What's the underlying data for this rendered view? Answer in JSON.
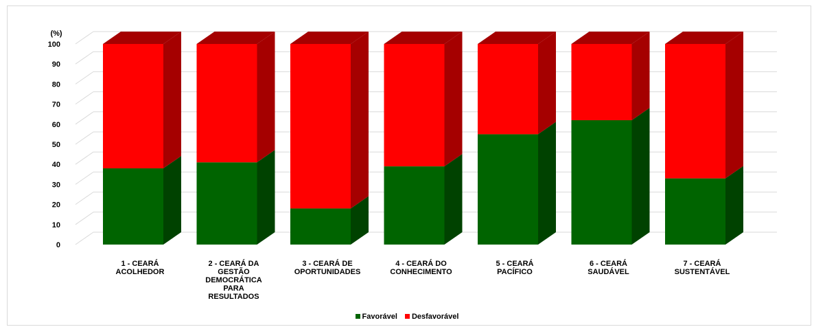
{
  "chart_data": {
    "type": "bar",
    "stacked": true,
    "three_d": true,
    "unit_label": "(%)",
    "categories": [
      [
        "1 - CEARÁ",
        "ACOLHEDOR"
      ],
      [
        "2 - CEARÁ DA",
        "GESTÃO",
        "DEMOCRÁTICA",
        "PARA",
        "RESULTADOS"
      ],
      [
        "3 - CEARÁ DE",
        "OPORTUNIDADES"
      ],
      [
        "4 - CEARÁ DO",
        "CONHECIMENTO"
      ],
      [
        "5 - CEARÁ",
        "PACÍFICO"
      ],
      [
        "6 - CEARÁ",
        "SAUDÁVEL"
      ],
      [
        "7 - CEARÁ",
        "SUSTENTÁVEL"
      ]
    ],
    "series": [
      {
        "name": "Favorável",
        "values": [
          38,
          41,
          18,
          39,
          55,
          62,
          33
        ],
        "color": "#006400",
        "side_color": "#004200"
      },
      {
        "name": "Desfavorável",
        "values": [
          62,
          59,
          82,
          61,
          45,
          38,
          67
        ],
        "color": "#ff0000",
        "side_color": "#a50000"
      }
    ],
    "ylim": [
      0,
      100
    ],
    "yticks": [
      0,
      10,
      20,
      30,
      40,
      50,
      60,
      70,
      80,
      90,
      100
    ],
    "grid": true,
    "legend_position": "bottom"
  }
}
